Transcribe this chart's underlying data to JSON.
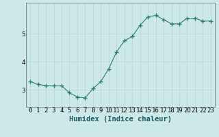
{
  "xlabel": "Humidex (Indice chaleur)",
  "x_values": [
    0,
    1,
    2,
    3,
    4,
    5,
    6,
    7,
    8,
    9,
    10,
    11,
    12,
    13,
    14,
    15,
    16,
    17,
    18,
    19,
    20,
    21,
    22,
    23
  ],
  "y_values": [
    3.3,
    3.2,
    3.15,
    3.15,
    3.15,
    2.9,
    2.75,
    2.72,
    3.05,
    3.3,
    3.75,
    4.35,
    4.75,
    4.9,
    5.3,
    5.6,
    5.65,
    5.5,
    5.35,
    5.35,
    5.55,
    5.55,
    5.45,
    5.45
  ],
  "line_color": "#2e7d6e",
  "marker": "+",
  "marker_size": 4,
  "background_color": "#cce8e8",
  "grid_color": "#b8d8d8",
  "ylim": [
    2.4,
    6.1
  ],
  "yticks": [
    3,
    4,
    5
  ],
  "xlim": [
    -0.5,
    23.5
  ],
  "figsize": [
    3.2,
    2.0
  ],
  "dpi": 100,
  "tick_labelsize": 6.5,
  "xlabel_fontsize": 7.5,
  "xlabel_fontweight": "bold"
}
